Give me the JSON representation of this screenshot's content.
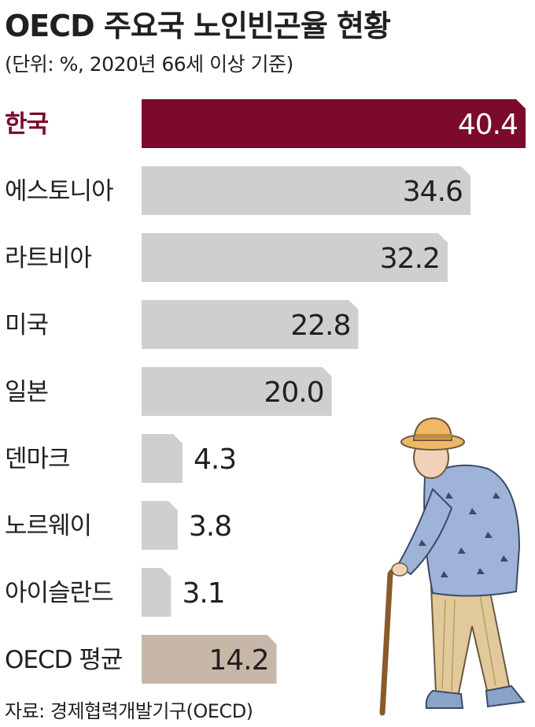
{
  "header": {
    "title": "OECD 주요국 노인빈곤율 현황",
    "subtitle": "(단위: %, 2020년 66세 이상 기준)"
  },
  "footer": {
    "source": "자료: 경제협력개발기구(OECD)"
  },
  "colors": {
    "highlight": "#7b0a2b",
    "default": "#cfcfcf",
    "average": "#c6b7a8",
    "text": "#231f20",
    "highlight_value_text": "#ffffff"
  },
  "chart_data": {
    "type": "bar",
    "orientation": "horizontal",
    "title": "OECD 주요국 노인빈곤율 현황",
    "subtitle": "(단위: %, 2020년 66세 이상 기준)",
    "categories": [
      "한국",
      "에스토니아",
      "라트비아",
      "미국",
      "일본",
      "덴마크",
      "노르웨이",
      "아이슬란드",
      "OECD 평균"
    ],
    "values": [
      40.4,
      34.6,
      32.2,
      22.8,
      20.0,
      4.3,
      3.8,
      3.1,
      14.2
    ],
    "value_labels": [
      "40.4",
      "34.6",
      "32.2",
      "22.8",
      "20.0",
      "4.3",
      "3.8",
      "3.1",
      "14.2"
    ],
    "highlight": "한국",
    "average_category": "OECD 평균",
    "xlim": [
      0,
      40.4
    ],
    "grid": false,
    "legend": "none"
  }
}
